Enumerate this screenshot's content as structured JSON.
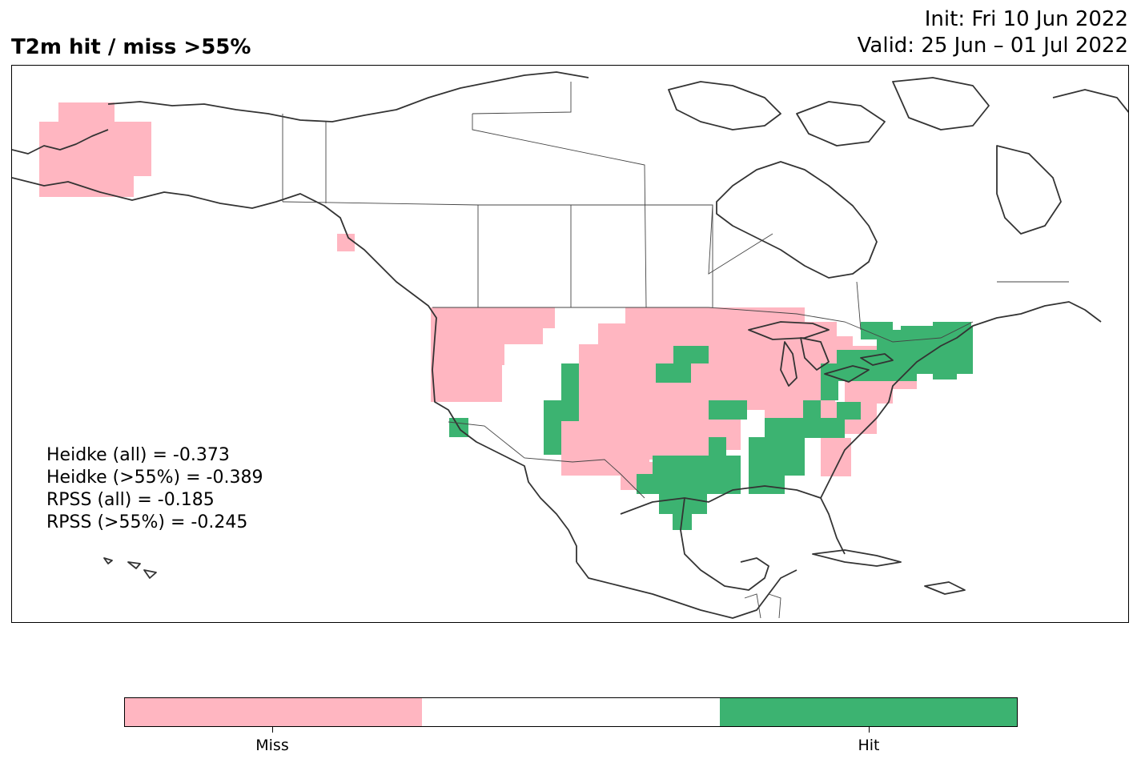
{
  "title": "T2m hit / miss  >55%",
  "init_line": "Init: Fri 10 Jun 2022",
  "valid_line": "Valid: 25 Jun – 01 Jul 2022",
  "stats": {
    "heidke_all": "Heidke (all) = -0.373",
    "heidke_55": "Heidke (>55%) = -0.389",
    "rpss_all": "RPSS (all) = -0.185",
    "rpss_55": "RPSS (>55%) = -0.245"
  },
  "colorbar": {
    "colors": [
      "#ffb6c1",
      "#ffffff",
      "#3cb371"
    ],
    "labels": [
      "Miss",
      "Hit"
    ]
  },
  "map": {
    "region": "North America",
    "miss_color": "#ffb6c1",
    "hit_color": "#3cb371",
    "coast_color": "#333333",
    "miss_areas": [
      "Western Alaska",
      "Pacific Northwest",
      "Northern Plains",
      "Upper Midwest",
      "Central Plains",
      "Southern Plains",
      "Ohio Valley",
      "Mid-Atlantic"
    ],
    "hit_areas": [
      "New England",
      "Southeast",
      "Gulf Coast",
      "Texas",
      "Southwest interior",
      "Northeast"
    ]
  }
}
